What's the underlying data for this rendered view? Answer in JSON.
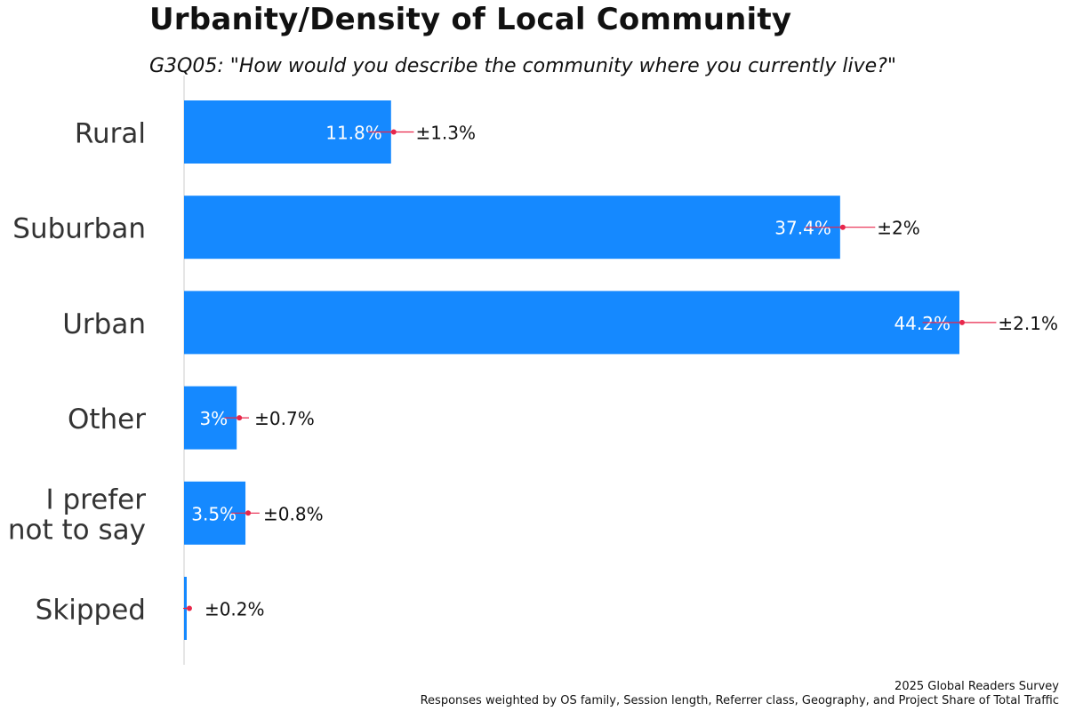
{
  "chart_data": {
    "type": "bar",
    "orientation": "horizontal",
    "title": "Urbanity/Density of Local Community",
    "subtitle": "G3Q05: \"How would you describe the community where you currently live?\"",
    "categories": [
      "Rural",
      "Suburban",
      "Urban",
      "Other",
      "I prefer not to say",
      "Skipped"
    ],
    "category_lines": [
      [
        "Rural"
      ],
      [
        "Suburban"
      ],
      [
        "Urban"
      ],
      [
        "Other"
      ],
      [
        "I prefer",
        "not to say"
      ],
      [
        "Skipped"
      ]
    ],
    "values": [
      11.8,
      37.4,
      44.2,
      3.0,
      3.5,
      0.15
    ],
    "value_labels": [
      "11.8%",
      "37.4%",
      "44.2%",
      "3%",
      "3.5%",
      ""
    ],
    "error_margins": [
      1.3,
      2.0,
      2.1,
      0.7,
      0.8,
      0.2
    ],
    "error_labels": [
      "±1.3%",
      "±2%",
      "±2.1%",
      "±0.7%",
      "±0.8%",
      "±0.2%"
    ],
    "xlim": [
      0,
      50
    ],
    "bar_color": "#1589FF",
    "error_color": "#E8274B",
    "axis_color": "#cccccc",
    "grid": false,
    "legend": "none"
  },
  "footer": {
    "line1": "2025 Global Readers Survey",
    "line2": "Responses weighted by OS family, Session length, Referrer class, Geography, and Project Share of Total Traffic"
  }
}
